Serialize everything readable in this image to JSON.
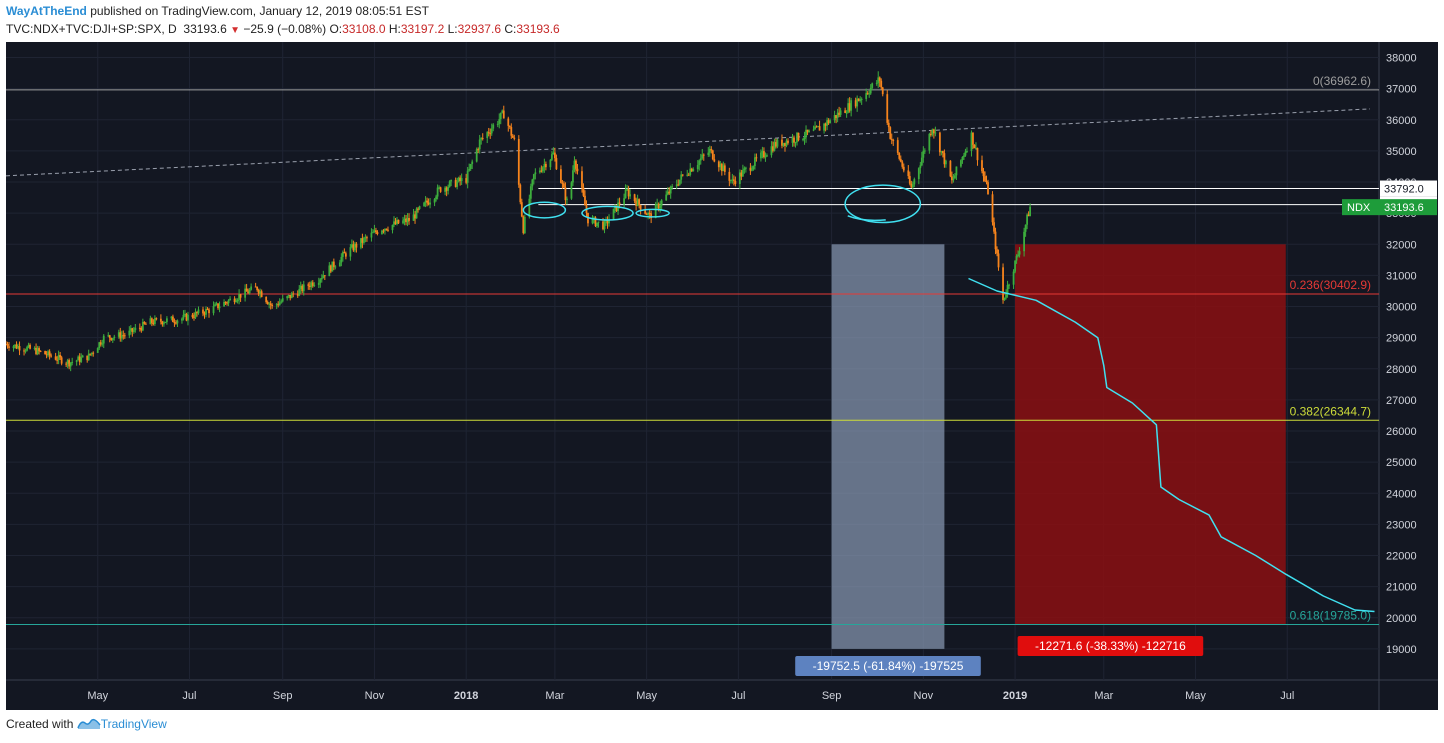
{
  "header": {
    "author": "WayAtTheEnd",
    "published_text": "published on TradingView.com, January 12, 2019 08:05:51 EST",
    "symbol": "TVC:NDX+TVC:DJI+SP:SPX, D",
    "last": "33193.6",
    "change": "−25.9 (−0.08%)",
    "o_label": "O:",
    "o_value": "33108.0",
    "h_label": "H:",
    "h_value": "33197.2",
    "l_label": "L:",
    "l_value": "32937.6",
    "c_label": "C:",
    "c_value": "33193.6"
  },
  "footer": {
    "created_with": "Created with",
    "brand": "TradingView"
  },
  "colors": {
    "background": "#131722",
    "up": "#3dae3d",
    "down": "#f7841c",
    "fib_0": "#9e9e9e",
    "fib_236": "#e53935",
    "fib_382": "#cddc39",
    "fib_618": "#26a69a",
    "projection": "#40e0f0",
    "gray_box": "#8a9bb5",
    "red_box": "#8b0f12",
    "label_green": "#1e9c3a"
  },
  "chart_data": {
    "type": "candlestick",
    "x_range": [
      "2017-03-01",
      "2019-08-31"
    ],
    "ylim": [
      18000,
      38500
    ],
    "y_ticks": [
      19000,
      20000,
      21000,
      22000,
      23000,
      24000,
      25000,
      26000,
      27000,
      28000,
      29000,
      30000,
      31000,
      32000,
      33000,
      34000,
      35000,
      36000,
      37000,
      38000
    ],
    "x_ticks": [
      {
        "label": "May",
        "date": "2017-05-01"
      },
      {
        "label": "Jul",
        "date": "2017-07-01"
      },
      {
        "label": "Sep",
        "date": "2017-09-01"
      },
      {
        "label": "Nov",
        "date": "2017-11-01"
      },
      {
        "label": "2018",
        "date": "2018-01-01",
        "bold": true
      },
      {
        "label": "Mar",
        "date": "2018-03-01"
      },
      {
        "label": "May",
        "date": "2018-05-01"
      },
      {
        "label": "Jul",
        "date": "2018-07-01"
      },
      {
        "label": "Sep",
        "date": "2018-09-01"
      },
      {
        "label": "Nov",
        "date": "2018-11-01"
      },
      {
        "label": "2019",
        "date": "2019-01-01",
        "bold": true
      },
      {
        "label": "Mar",
        "date": "2019-03-01"
      },
      {
        "label": "May",
        "date": "2019-05-01"
      },
      {
        "label": "Jul",
        "date": "2019-07-01"
      }
    ],
    "price_path": [
      [
        "2017-03-01",
        28800
      ],
      [
        "2017-03-20",
        28600
      ],
      [
        "2017-04-12",
        28200
      ],
      [
        "2017-04-25",
        28400
      ],
      [
        "2017-05-05",
        29000
      ],
      [
        "2017-05-20",
        29100
      ],
      [
        "2017-06-05",
        29500
      ],
      [
        "2017-06-25",
        29600
      ],
      [
        "2017-07-15",
        29900
      ],
      [
        "2017-08-05",
        30400
      ],
      [
        "2017-08-15",
        30600
      ],
      [
        "2017-08-25",
        30000
      ],
      [
        "2017-09-05",
        30300
      ],
      [
        "2017-09-25",
        30900
      ],
      [
        "2017-10-15",
        31800
      ],
      [
        "2017-11-05",
        32500
      ],
      [
        "2017-11-25",
        32800
      ],
      [
        "2017-12-15",
        33800
      ],
      [
        "2018-01-01",
        34100
      ],
      [
        "2018-01-10",
        35300
      ],
      [
        "2018-01-26",
        36200
      ],
      [
        "2018-02-02",
        35300
      ],
      [
        "2018-02-08",
        32500
      ],
      [
        "2018-02-15",
        34200
      ],
      [
        "2018-02-28",
        34900
      ],
      [
        "2018-03-10",
        33200
      ],
      [
        "2018-03-14",
        34800
      ],
      [
        "2018-03-23",
        32800
      ],
      [
        "2018-04-03",
        32600
      ],
      [
        "2018-04-18",
        33700
      ],
      [
        "2018-05-03",
        32900
      ],
      [
        "2018-05-25",
        34200
      ],
      [
        "2018-06-12",
        35000
      ],
      [
        "2018-06-27",
        34000
      ],
      [
        "2018-07-25",
        35200
      ],
      [
        "2018-08-20",
        35600
      ],
      [
        "2018-09-20",
        36700
      ],
      [
        "2018-10-03",
        37300
      ],
      [
        "2018-10-10",
        35500
      ],
      [
        "2018-10-24",
        33800
      ],
      [
        "2018-11-07",
        35800
      ],
      [
        "2018-11-20",
        34000
      ],
      [
        "2018-12-03",
        35500
      ],
      [
        "2018-12-14",
        33700
      ],
      [
        "2018-12-24",
        30200
      ],
      [
        "2019-01-03",
        31700
      ],
      [
        "2019-01-11",
        33194
      ]
    ],
    "fib_levels": [
      {
        "label": "0(36962.6)",
        "value": 36962.6
      },
      {
        "label": "0.236(30402.9)",
        "value": 30402.9
      },
      {
        "label": "0.382(26344.7)",
        "value": 26344.7
      },
      {
        "label": "0.618(19785.0)",
        "value": 19785.0
      }
    ],
    "horizontal_levels": [
      {
        "label": "33792.0",
        "value": 33792.0
      },
      {
        "label": "33275.6",
        "value": 33275.6
      }
    ],
    "last_price_label": {
      "name": "NDX",
      "value": "33193.6"
    },
    "trendline": {
      "start": [
        "2017-03-01",
        34200
      ],
      "end": [
        "2019-08-25",
        36350
      ]
    },
    "projection": [
      [
        "2018-12-01",
        30900
      ],
      [
        "2018-12-20",
        30500
      ],
      [
        "2019-01-15",
        30200
      ],
      [
        "2019-02-10",
        29500
      ],
      [
        "2019-02-25",
        29000
      ],
      [
        "2019-03-01",
        28100
      ],
      [
        "2019-03-03",
        27400
      ],
      [
        "2019-03-20",
        26900
      ],
      [
        "2019-04-05",
        26200
      ],
      [
        "2019-04-08",
        24200
      ],
      [
        "2019-04-20",
        23800
      ],
      [
        "2019-05-10",
        23300
      ],
      [
        "2019-05-18",
        22600
      ],
      [
        "2019-06-10",
        22000
      ],
      [
        "2019-06-30",
        21400
      ],
      [
        "2019-07-25",
        20700
      ],
      [
        "2019-08-15",
        20250
      ],
      [
        "2019-08-28",
        20200
      ]
    ],
    "measure_gray": {
      "x": [
        "2018-09-01",
        "2018-11-15"
      ],
      "y": [
        19000,
        32000
      ],
      "label": "-19752.5 (-61.84%) -197525"
    },
    "measure_red": {
      "x": [
        "2019-01-01",
        "2019-06-30"
      ],
      "y": [
        19785,
        32000
      ],
      "label": "-12271.6 (-38.33%) -122716"
    },
    "circles": [
      {
        "center": [
          "2018-02-22",
          33100
        ],
        "rx_days": 14,
        "ry": 250
      },
      {
        "center": [
          "2018-04-05",
          33000
        ],
        "rx_days": 17,
        "ry": 220
      },
      {
        "center": [
          "2018-05-05",
          33000
        ],
        "rx_days": 11,
        "ry": 120
      },
      {
        "center": [
          "2018-10-05",
          33300
        ],
        "rx_days": 25,
        "ry": 600
      }
    ]
  }
}
